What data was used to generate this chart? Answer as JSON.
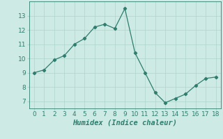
{
  "x": [
    0,
    1,
    2,
    3,
    4,
    5,
    6,
    7,
    8,
    9,
    10,
    11,
    12,
    13,
    14,
    15,
    16,
    17,
    18
  ],
  "y": [
    9.0,
    9.2,
    9.9,
    10.2,
    11.0,
    11.4,
    12.2,
    12.4,
    12.1,
    13.5,
    10.4,
    9.0,
    7.6,
    6.9,
    7.2,
    7.5,
    8.1,
    8.6,
    8.7
  ],
  "xlabel": "Humidex (Indice chaleur)",
  "ylim": [
    6.5,
    14.0
  ],
  "xlim": [
    -0.5,
    18.5
  ],
  "yticks": [
    7,
    8,
    9,
    10,
    11,
    12,
    13
  ],
  "xticks": [
    0,
    1,
    2,
    3,
    4,
    5,
    6,
    7,
    8,
    9,
    10,
    11,
    12,
    13,
    14,
    15,
    16,
    17,
    18
  ],
  "line_color": "#2e7d6e",
  "marker": "D",
  "marker_size": 2.2,
  "background_color": "#ceeae4",
  "grid_color": "#aed4cc",
  "tick_label_fontsize": 6.5,
  "xlabel_fontsize": 7.5
}
